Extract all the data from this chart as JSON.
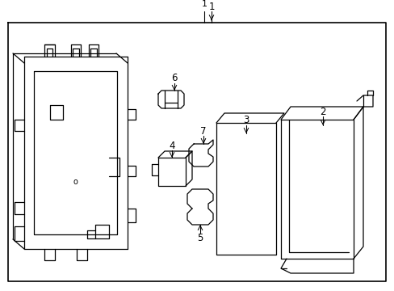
{
  "background_color": "#ffffff",
  "line_color": "#000000",
  "line_width": 0.9,
  "fig_width": 4.89,
  "fig_height": 3.6,
  "dpi": 100
}
